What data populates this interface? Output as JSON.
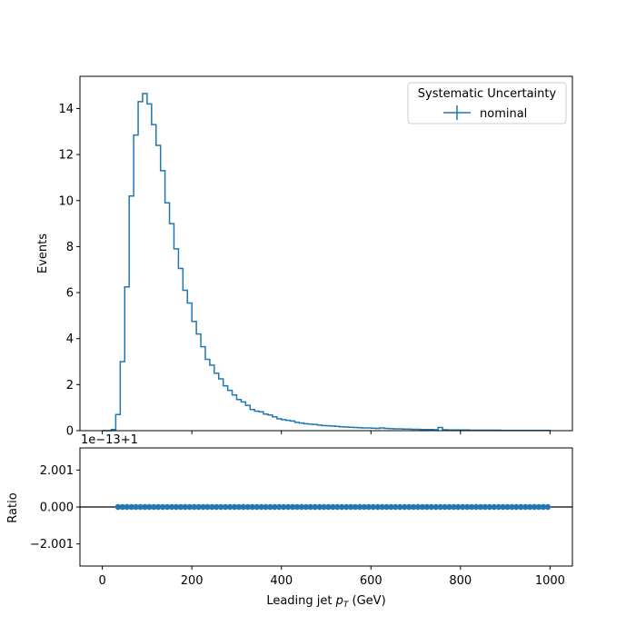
{
  "chart_data": [
    {
      "type": "line",
      "panel": "main",
      "step": true,
      "ylabel": "Events",
      "ylim": [
        0,
        15.4
      ],
      "xlim": [
        -50,
        1050
      ],
      "yticks": [
        0,
        2,
        4,
        6,
        8,
        10,
        12,
        14
      ],
      "legend": {
        "title": "Systematic Uncertainty",
        "placement": "top-right",
        "entries": [
          "nominal"
        ]
      },
      "series": [
        {
          "name": "nominal",
          "color": "#1f77b4",
          "bin_width": 10,
          "x_start": 0,
          "values": [
            0,
            0,
            0.05,
            0.7,
            3.0,
            6.25,
            10.2,
            12.85,
            14.3,
            14.65,
            14.2,
            13.3,
            12.4,
            11.3,
            9.9,
            9.0,
            7.9,
            7.05,
            6.1,
            5.55,
            4.75,
            4.2,
            3.65,
            3.1,
            2.85,
            2.5,
            2.25,
            1.95,
            1.75,
            1.55,
            1.35,
            1.25,
            1.1,
            0.92,
            0.85,
            0.82,
            0.72,
            0.68,
            0.6,
            0.52,
            0.48,
            0.45,
            0.42,
            0.36,
            0.33,
            0.3,
            0.28,
            0.27,
            0.24,
            0.22,
            0.21,
            0.2,
            0.19,
            0.17,
            0.16,
            0.15,
            0.14,
            0.13,
            0.12,
            0.12,
            0.11,
            0.1,
            0.12,
            0.1,
            0.09,
            0.08,
            0.08,
            0.07,
            0.07,
            0.06,
            0.06,
            0.05,
            0.05,
            0.05,
            0.04,
            0.14,
            0.04,
            0.03,
            0.03,
            0.03,
            0.03,
            0.03,
            0.02,
            0.02,
            0.02,
            0.02,
            0.02,
            0.02,
            0.02,
            0.01,
            0.01,
            0.01,
            0.01,
            0.01,
            0.01,
            0.01,
            0.01,
            0.01,
            0.01,
            0.01
          ]
        }
      ]
    },
    {
      "type": "scatter",
      "panel": "ratio",
      "ylabel": "Ratio",
      "xlabel": "Leading jet  p_T (GeV)",
      "offset_label": "1e−13+1",
      "ylim": [
        -3.2,
        3.2
      ],
      "xlim": [
        -50,
        1050
      ],
      "yticks": [
        -2.001,
        0.0,
        2.001
      ],
      "ytick_labels": [
        "−2.001",
        "0.000",
        "2.001"
      ],
      "xticks": [
        0,
        200,
        400,
        600,
        800,
        1000
      ],
      "xtick_labels": [
        "0",
        "200",
        "400",
        "600",
        "800",
        "1000"
      ],
      "reference_line": 0,
      "series": [
        {
          "color": "#1f77b4",
          "x_start": 35,
          "x_step": 10,
          "count": 97,
          "value": 0
        }
      ]
    }
  ],
  "text": {
    "legend_title": "Systematic Uncertainty",
    "legend_entry": "nominal",
    "main_ylabel": "Events",
    "ratio_ylabel": "Ratio",
    "offset_label": "1e−13+1",
    "xlabel_prefix": "Leading jet  ",
    "xlabel_p": "p",
    "xlabel_sub": "T",
    "xlabel_suffix": " (GeV)"
  }
}
